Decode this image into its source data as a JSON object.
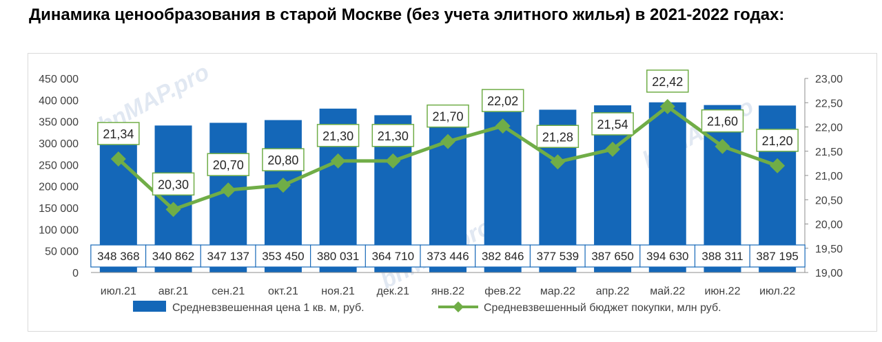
{
  "title": "Динамика ценообразования в старой Москве (без учета элитного жилья) в 2021-2022 годах:",
  "colors": {
    "bar": "#1467b8",
    "line": "#70ad47",
    "label_border": "#70ad47",
    "axis_text": "#404040",
    "watermark": "#c9d6e8"
  },
  "watermark": "bnMAP.pro",
  "chart_data": {
    "type": "bar+line",
    "categories": [
      "июл.21",
      "авг.21",
      "сен.21",
      "окт.21",
      "ноя.21",
      "дек.21",
      "янв.22",
      "фев.22",
      "мар.22",
      "апр.22",
      "май.22",
      "июн.22",
      "июл.22"
    ],
    "series": [
      {
        "name": "Средневзвешенная цена 1 кв. м, руб.",
        "type": "bar",
        "axis": "left",
        "values": [
          348368,
          340862,
          347137,
          353450,
          380031,
          364710,
          373446,
          382846,
          377539,
          387650,
          394630,
          388311,
          387195
        ],
        "labels": [
          "348 368",
          "340 862",
          "347 137",
          "353 450",
          "380 031",
          "364 710",
          "373 446",
          "382 846",
          "377 539",
          "387 650",
          "394 630",
          "388 311",
          "387 195"
        ]
      },
      {
        "name": "Средневзвешенный бюджет покупки, млн руб.",
        "type": "line",
        "axis": "right",
        "values": [
          21.34,
          20.3,
          20.7,
          20.8,
          21.3,
          21.3,
          21.7,
          22.02,
          21.28,
          21.54,
          22.42,
          21.6,
          21.2
        ],
        "labels": [
          "21,34",
          "20,30",
          "20,70",
          "20,80",
          "21,30",
          "21,30",
          "21,70",
          "22,02",
          "21,28",
          "21,54",
          "22,42",
          "21,60",
          "21,20"
        ]
      }
    ],
    "y_left": {
      "ylim": [
        0,
        450000
      ],
      "ticks": [
        0,
        50000,
        100000,
        150000,
        200000,
        250000,
        300000,
        350000,
        400000,
        450000
      ],
      "tick_labels": [
        "0",
        "50 000",
        "100 000",
        "150 000",
        "200 000",
        "250 000",
        "300 000",
        "350 000",
        "400 000",
        "450 000"
      ]
    },
    "y_right": {
      "ylim": [
        19.0,
        23.0
      ],
      "ticks": [
        19.0,
        19.5,
        20.0,
        20.5,
        21.0,
        21.5,
        22.0,
        22.5,
        23.0
      ],
      "tick_labels": [
        "19,00",
        "19,50",
        "20,00",
        "20,50",
        "21,00",
        "21,50",
        "22,00",
        "22,50",
        "23,00"
      ]
    },
    "legend_position": "bottom",
    "grid": false
  }
}
